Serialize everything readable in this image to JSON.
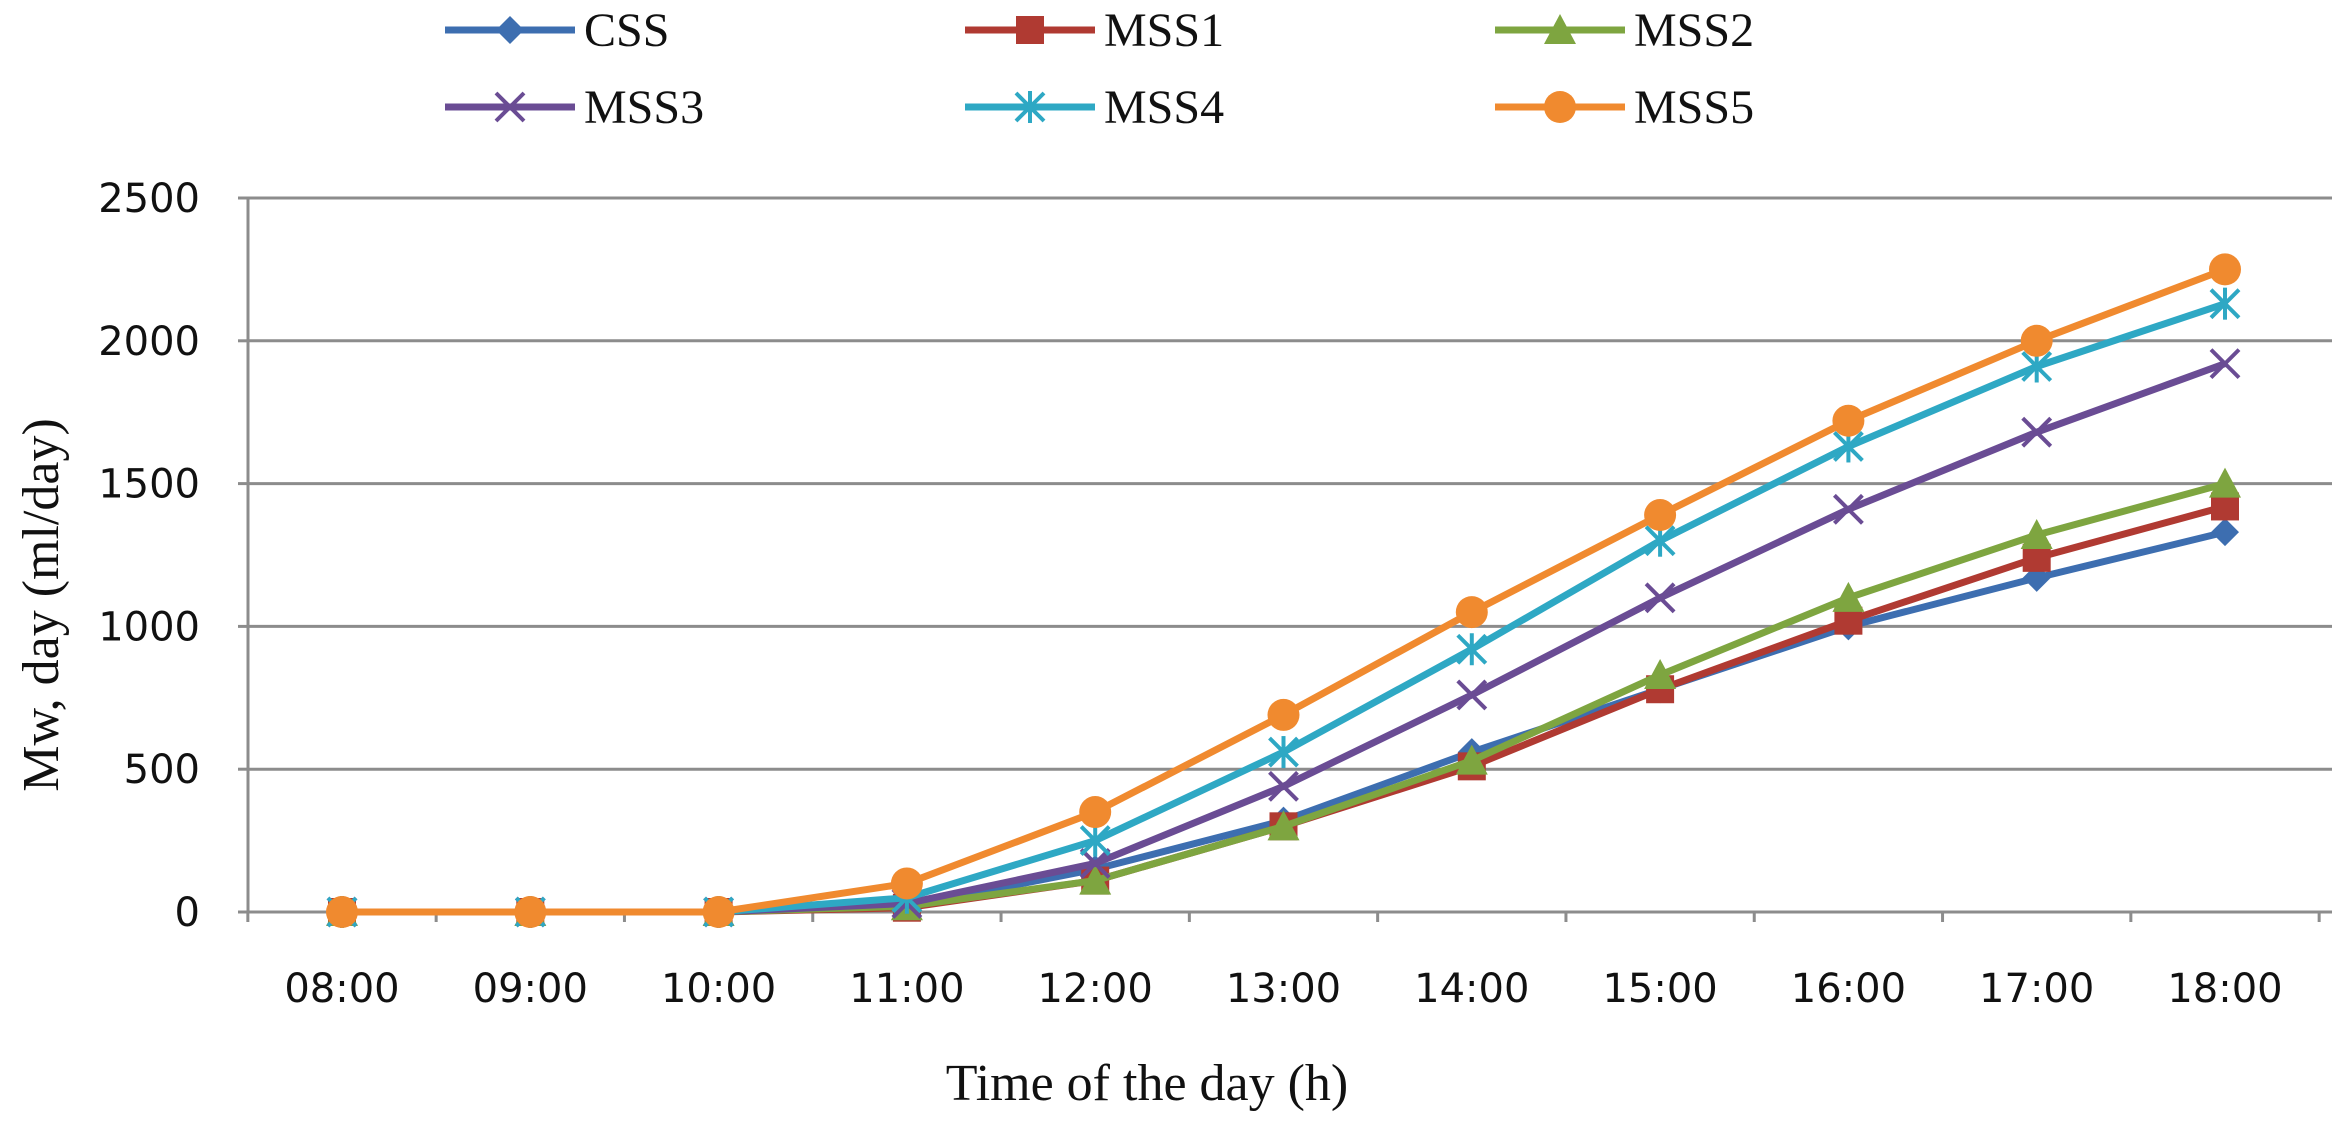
{
  "chart_data": {
    "type": "line",
    "xlabel": "Time of the day (h)",
    "ylabel": "Mw, day (ml/day)",
    "categories": [
      "08:00",
      "09:00",
      "10:00",
      "11:00",
      "12:00",
      "13:00",
      "14:00",
      "15:00",
      "16:00",
      "17:00",
      "18:00"
    ],
    "ylim": [
      0,
      2500
    ],
    "yticks": [
      0,
      500,
      1000,
      1500,
      2000,
      2500
    ],
    "grid": true,
    "legend_position": "top",
    "series": [
      {
        "name": "CSS",
        "color": "#3d6eb0",
        "marker": "diamond",
        "values": [
          0,
          0,
          0,
          20,
          150,
          320,
          560,
          780,
          1000,
          1170,
          1330
        ]
      },
      {
        "name": "MSS1",
        "color": "#b03a32",
        "marker": "square",
        "values": [
          0,
          0,
          0,
          15,
          110,
          300,
          510,
          780,
          1020,
          1240,
          1420
        ]
      },
      {
        "name": "MSS2",
        "color": "#7ea540",
        "marker": "triangle",
        "values": [
          0,
          0,
          0,
          20,
          110,
          300,
          530,
          830,
          1100,
          1320,
          1500
        ]
      },
      {
        "name": "MSS3",
        "color": "#6a4c94",
        "marker": "x",
        "values": [
          0,
          0,
          0,
          30,
          170,
          440,
          760,
          1100,
          1410,
          1680,
          1920
        ]
      },
      {
        "name": "MSS4",
        "color": "#2ea8c4",
        "marker": "star",
        "values": [
          0,
          0,
          0,
          50,
          250,
          560,
          920,
          1300,
          1630,
          1910,
          2130
        ]
      },
      {
        "name": "MSS5",
        "color": "#f08a2f",
        "marker": "circle",
        "values": [
          0,
          0,
          0,
          100,
          350,
          690,
          1050,
          1390,
          1720,
          2000,
          2250
        ]
      }
    ]
  }
}
